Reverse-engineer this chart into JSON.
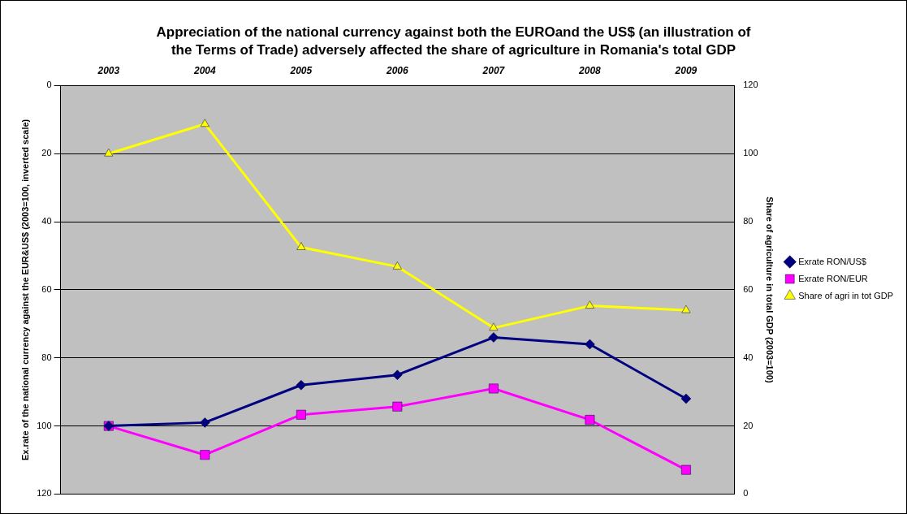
{
  "chart_data": {
    "type": "line",
    "title": "Appreciation of the national currency  against both the EUROand the US$ (an illustration of the Terms of Trade) adversely affected the share of agriculture in Romania's total GDP",
    "categories": [
      "2003",
      "2004",
      "2005",
      "2006",
      "2007",
      "2008",
      "2009"
    ],
    "ylabel": "Ex.rate of the national currency against the EUR&US$ (2003=100, inverted scale)",
    "y2label": "Share of agriculture in total GDP (2003=100)",
    "ylim": [
      120,
      0
    ],
    "yticks": [
      0,
      20,
      40,
      60,
      80,
      100,
      120
    ],
    "y2lim": [
      0,
      120
    ],
    "y2ticks": [
      0,
      20,
      40,
      60,
      80,
      100,
      120
    ],
    "grid": "y",
    "legend": "right",
    "series": [
      {
        "name": "Exrate RON/US$",
        "color": "#000080",
        "marker": "diamond",
        "values": [
          100,
          99,
          88,
          85,
          74,
          76,
          92
        ]
      },
      {
        "name": "Exrate RON/EUR",
        "color": "#ff00ff",
        "marker": "square",
        "values": [
          100,
          108.5,
          96.7,
          94.3,
          89,
          98.2,
          112.9
        ]
      },
      {
        "name": "Share of agri in tot GDP",
        "color": "#ffff00",
        "marker": "triangle",
        "axis": "y2",
        "values": [
          100,
          108.7,
          72.5,
          66.8,
          48.8,
          55.3,
          54
        ]
      }
    ]
  }
}
